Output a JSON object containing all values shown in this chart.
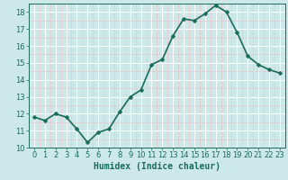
{
  "x": [
    0,
    1,
    2,
    3,
    4,
    5,
    6,
    7,
    8,
    9,
    10,
    11,
    12,
    13,
    14,
    15,
    16,
    17,
    18,
    19,
    20,
    21,
    22,
    23
  ],
  "y": [
    11.8,
    11.6,
    12.0,
    11.8,
    11.1,
    10.3,
    10.9,
    11.1,
    12.1,
    13.0,
    13.4,
    14.9,
    15.2,
    16.6,
    17.6,
    17.5,
    17.9,
    18.4,
    18.0,
    16.8,
    15.4,
    14.9,
    14.6,
    14.4
  ],
  "line_color": "#1a6b5a",
  "marker": "D",
  "markersize": 2.5,
  "bg_color": "#cce8e8",
  "grid_major_color": "#ffffff",
  "grid_minor_color": "#e8c8c8",
  "xlabel": "Humidex (Indice chaleur)",
  "ylim": [
    10,
    18.5
  ],
  "xlim": [
    -0.5,
    23.5
  ],
  "yticks": [
    10,
    11,
    12,
    13,
    14,
    15,
    16,
    17,
    18
  ],
  "xticks": [
    0,
    1,
    2,
    3,
    4,
    5,
    6,
    7,
    8,
    9,
    10,
    11,
    12,
    13,
    14,
    15,
    16,
    17,
    18,
    19,
    20,
    21,
    22,
    23
  ],
  "tick_color": "#1a6b5a",
  "spine_color": "#1a6b5a",
  "xlabel_fontsize": 7,
  "tick_fontsize": 6,
  "linewidth": 1.2
}
